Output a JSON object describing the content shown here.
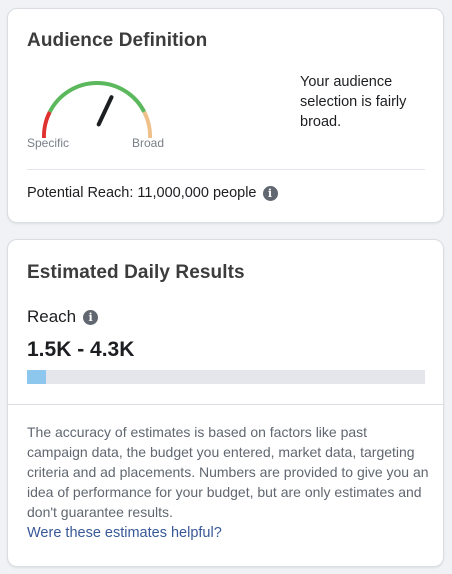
{
  "audience_definition": {
    "title": "Audience Definition",
    "gauge": {
      "left_label": "Specific",
      "right_label": "Broad",
      "level": 0.62,
      "colors": {
        "low": "#e03131",
        "mid": "#5cb85c",
        "high": "#f0c08a",
        "needle": "#1c1e21"
      }
    },
    "description": "Your audience selection is fairly broad.",
    "potential_reach": "Potential Reach: 11,000,000 people",
    "info_icon": "info-icon"
  },
  "estimated_daily_results": {
    "title": "Estimated Daily Results",
    "reach_label": "Reach",
    "info_icon": "info-icon",
    "reach_range": "1.5K - 4.3K",
    "reach_bar_fraction": 0.048,
    "bar_color": "#8ec7ee",
    "disclaimer": "The accuracy of estimates is based on factors like past campaign data, the budget you entered, market data, targeting criteria and ad placements. Numbers are provided to give you an idea of performance for your budget, but are only estimates and don't guarantee results.",
    "helpful_link": "Were these estimates helpful?"
  }
}
